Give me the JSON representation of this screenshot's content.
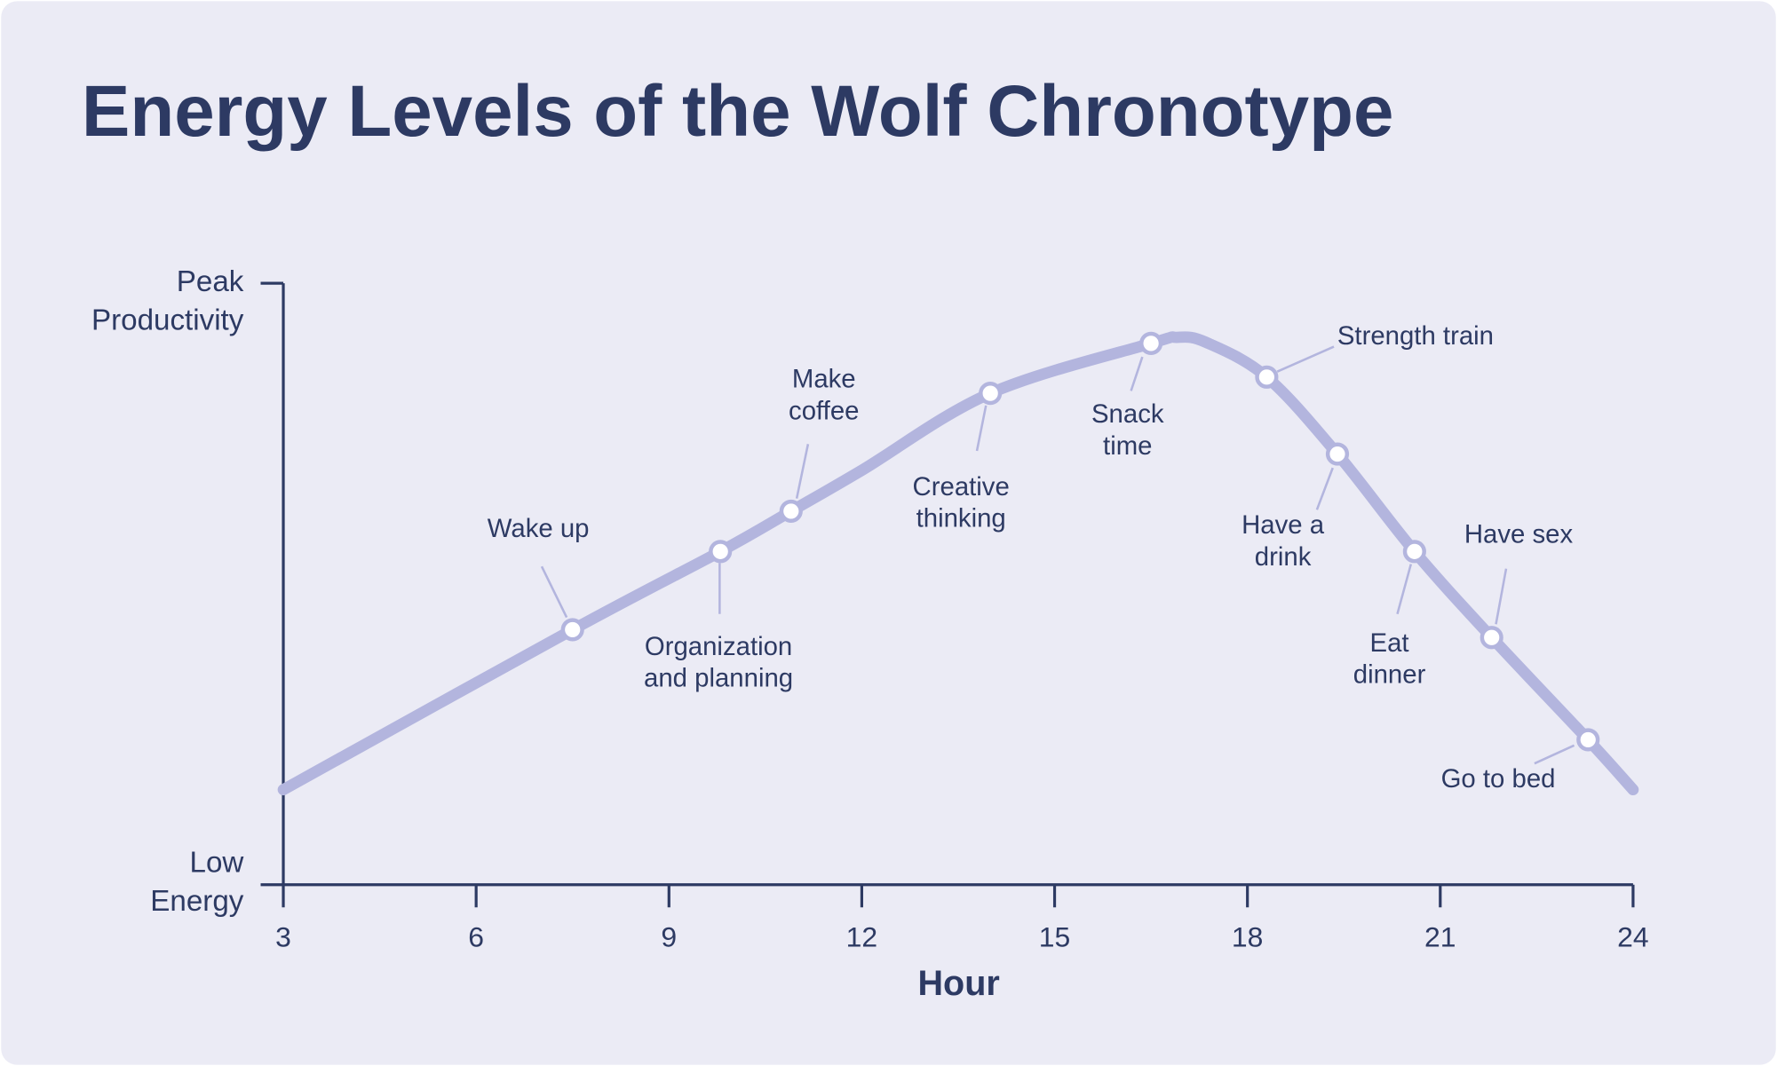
{
  "chart_data": {
    "type": "line",
    "title": "Energy Levels of the Wolf Chronotype",
    "x_label": "Hour",
    "color": "#b3b5de",
    "x": [
      3,
      7.5,
      9.8,
      10.9,
      12,
      14.0,
      16.5,
      16.9,
      17.35,
      18.3,
      19.4,
      20.6,
      21.8,
      23.3,
      24
    ],
    "values": [
      15.8,
      42.4,
      55.4,
      62.1,
      68.9,
      81.7,
      90.0,
      91.0,
      90.2,
      84.4,
      71.6,
      55.4,
      41.1,
      24.1,
      15.8
    ],
    "xlim": [
      3,
      24
    ],
    "xticks": [
      3,
      6,
      9,
      12,
      15,
      18,
      21,
      24
    ],
    "ylim": [
      0,
      100
    ],
    "yticks": [
      {
        "value": 0,
        "label": [
          "Low",
          "Energy"
        ]
      },
      {
        "value": 100,
        "label": [
          "Peak",
          "Productivity"
        ]
      }
    ],
    "annotations": [
      {
        "label": [
          "Wake up"
        ],
        "x": 7.5,
        "y": 42.4
      },
      {
        "label": [
          "Organization",
          "and planning"
        ],
        "x": 9.8,
        "y": 55.4
      },
      {
        "label": [
          "Make",
          "coffee"
        ],
        "x": 10.9,
        "y": 62.1
      },
      {
        "label": [
          "Creative",
          "thinking"
        ],
        "x": 14.0,
        "y": 81.7
      },
      {
        "label": [
          "Snack",
          "time"
        ],
        "x": 16.5,
        "y": 90.0
      },
      {
        "label": [
          "Strength train"
        ],
        "x": 18.3,
        "y": 84.4
      },
      {
        "label": [
          "Have a",
          "drink"
        ],
        "x": 19.4,
        "y": 71.6
      },
      {
        "label": [
          "Eat",
          "dinner"
        ],
        "x": 20.6,
        "y": 55.4
      },
      {
        "label": [
          "Have sex"
        ],
        "x": 21.8,
        "y": 41.1
      },
      {
        "label": [
          "Go to bed"
        ],
        "x": 23.3,
        "y": 24.1
      }
    ]
  }
}
